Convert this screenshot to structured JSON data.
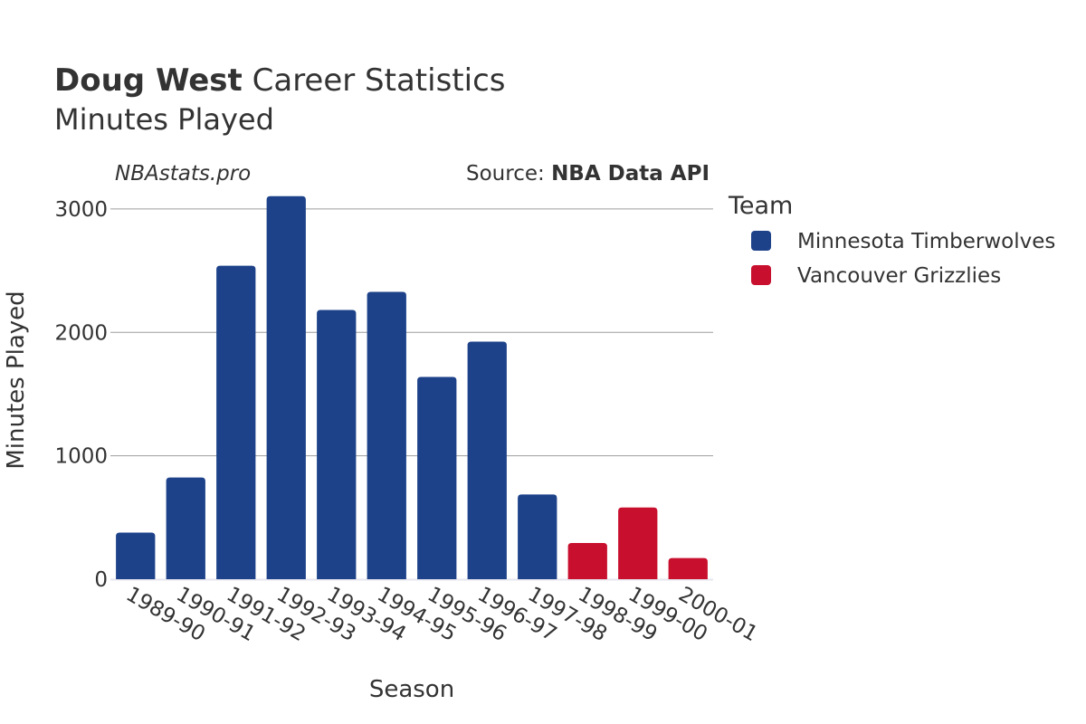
{
  "chart_data": {
    "type": "bar",
    "title_bold": "Doug West",
    "title_rest": "Career Statistics",
    "subtitle": "Minutes Played",
    "watermark": "NBAstats.pro",
    "source_prefix": "Source: ",
    "source_name": "NBA Data API",
    "xlabel": "Season",
    "ylabel": "Minutes Played",
    "ylim": [
      0,
      3300
    ],
    "yticks": [
      0,
      1000,
      2000,
      3000
    ],
    "grid": true,
    "legend_title": "Team",
    "legend_position": "right",
    "categories": [
      "1989-90",
      "1990-91",
      "1991-92",
      "1992-93",
      "1993-94",
      "1994-95",
      "1995-96",
      "1996-97",
      "1997-98",
      "1998-99",
      "1999-00",
      "2000-01"
    ],
    "series": [
      {
        "name": "Minnesota Timberwolves",
        "color": "#1d428a",
        "values": [
          378,
          824,
          2540,
          3104,
          2182,
          2328,
          1639,
          1925,
          687,
          null,
          null,
          null
        ]
      },
      {
        "name": "Vancouver Grizzlies",
        "color": "#c8102e",
        "values": [
          null,
          null,
          null,
          null,
          null,
          null,
          null,
          null,
          null,
          293,
          581,
          171
        ]
      }
    ]
  }
}
